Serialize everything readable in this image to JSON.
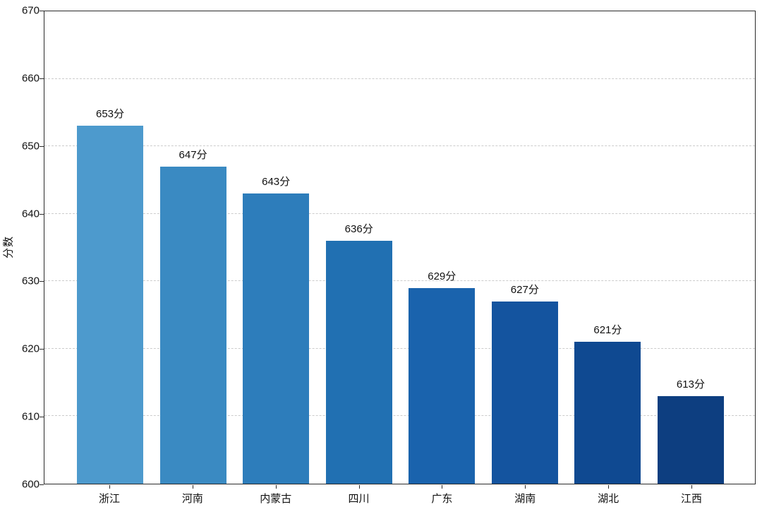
{
  "chart_data": {
    "type": "bar",
    "title": "",
    "xlabel": "",
    "ylabel": "分数",
    "ylim": [
      600,
      670
    ],
    "y_ticks": [
      600,
      610,
      620,
      630,
      640,
      650,
      660,
      670
    ],
    "gridlines": {
      "visible": true,
      "style": "dashed",
      "values": [
        610,
        620,
        630,
        640,
        650,
        660
      ]
    },
    "legend": {
      "visible": false
    },
    "categories": [
      "浙江",
      "河南",
      "内蒙古",
      "四川",
      "广东",
      "湖南",
      "湖北",
      "江西"
    ],
    "values": [
      653,
      647,
      643,
      636,
      629,
      627,
      621,
      613
    ],
    "value_labels": [
      "653分",
      "647分",
      "643分",
      "636分",
      "629分",
      "627分",
      "621分",
      "613分"
    ],
    "bar_colors": [
      "#4d9acd",
      "#3a8ac2",
      "#2d7dbb",
      "#2170b2",
      "#1a63ad",
      "#14549f",
      "#0f4991",
      "#0d3e80"
    ],
    "spine_color": "#2b2b2b",
    "grid_color": "#cccccc",
    "text_color": "#111111"
  }
}
